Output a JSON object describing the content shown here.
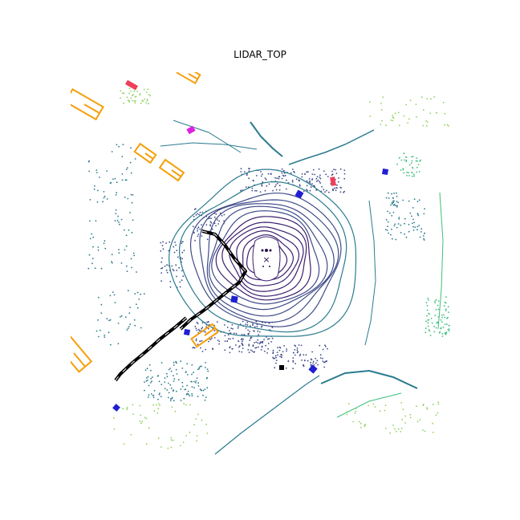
{
  "title": "LIDAR_TOP",
  "colors": {
    "ring_inner": "#3b1f6e",
    "ring_mid": "#3e4b89",
    "ring_outer": "#2a7b8e",
    "far_points": "#3fbf7f",
    "very_far_points": "#8fd15a",
    "car_box": "#f59f0b",
    "ped_box": "#1f1fd1",
    "barrier_box": "#000000",
    "bike_box": "#ef3f5a",
    "cone_box": "#e020e0",
    "ego_marker": "#2b1050"
  },
  "legend": [],
  "ego_marker_glyph": "×"
}
